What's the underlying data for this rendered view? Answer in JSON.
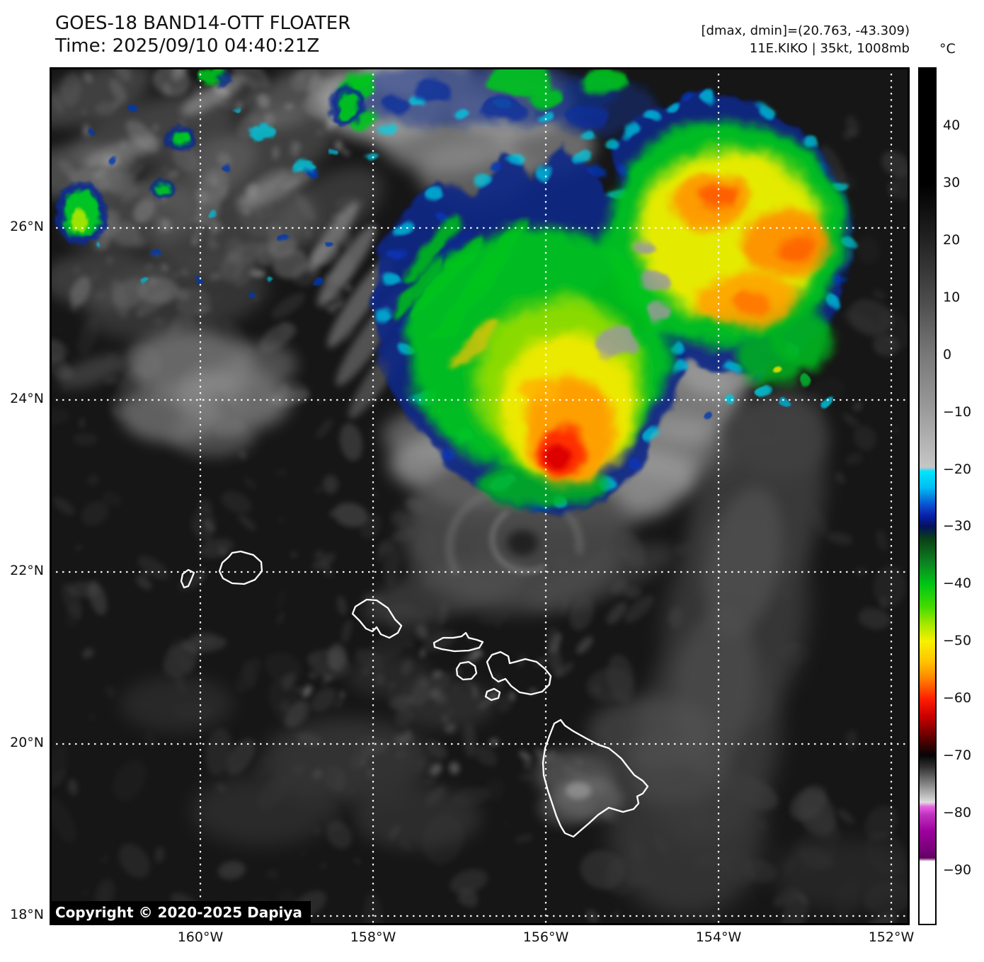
{
  "header": {
    "title": "GOES-18 BAND14-OTT FLOATER",
    "time": "Time: 2025/09/10 04:40:21Z",
    "range_info": "[dmax, dmin]=(20.763, -43.309)",
    "storm_info": "11E.KIKO | 35kt, 1008mb"
  },
  "colorbar": {
    "unit": "°C",
    "ticks": [
      "40",
      "30",
      "20",
      "10",
      "0",
      "−10",
      "−20",
      "−30",
      "−40",
      "−50",
      "−60",
      "−70",
      "−80",
      "−90"
    ],
    "palette_anchors": {
      "gray_warm": "#000000",
      "gray_cold": "#c6c6c6",
      "cyan_-20": "#00e4ff",
      "navy_-30": "#041060",
      "green_-40": "#00c614",
      "yellow_-50": "#f8f000",
      "red_-60": "#ff1e00",
      "black_-70": "#050505",
      "magenta_-80": "#c133c1",
      "white_below_-90": "#ffffff"
    }
  },
  "axes": {
    "lat": [
      "26°N",
      "24°N",
      "22°N",
      "20°N",
      "18°N"
    ],
    "lon": [
      "160°W",
      "158°W",
      "156°W",
      "154°W",
      "152°W"
    ]
  },
  "watermark": {
    "copyright": "Copyright © 2020-2025 Dapiya"
  }
}
